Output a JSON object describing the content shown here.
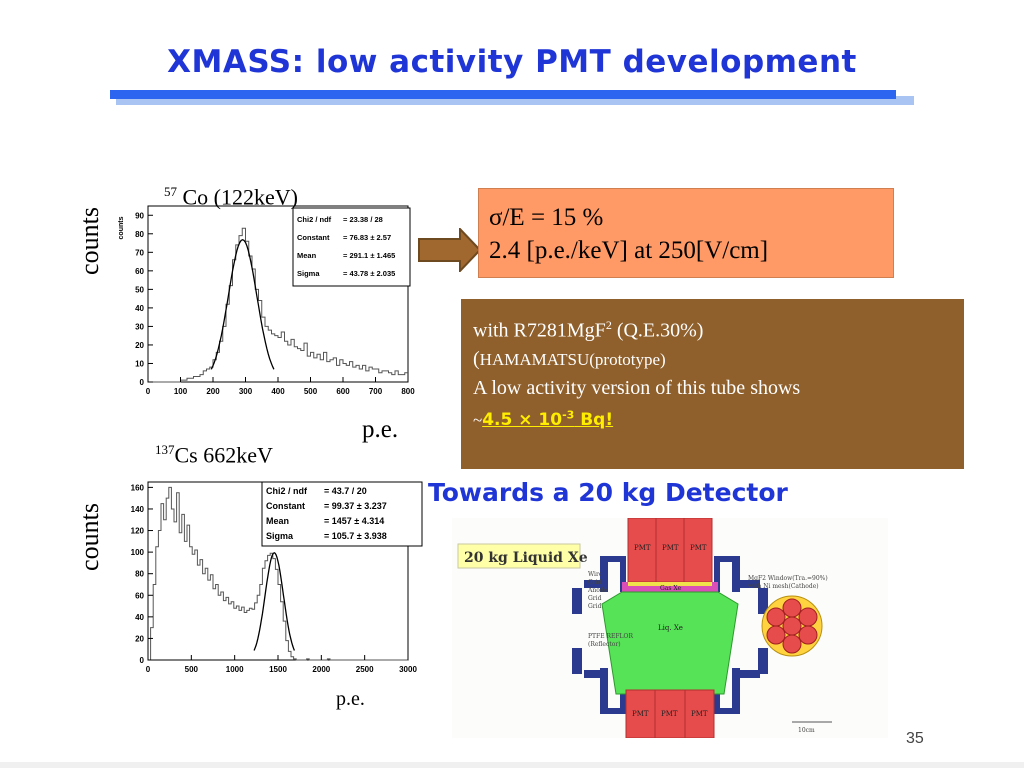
{
  "slide": {
    "title": "XMASS: low activity PMT development",
    "page_number": "35"
  },
  "co57_plot": {
    "isotope_mass": "57",
    "label": " Co (122keV)",
    "y_axis_word": "counts",
    "x_axis_word": "p.e.",
    "inner_ylabel": "counts",
    "stats": [
      {
        "name": "Chi2 / ndf",
        "value": "= 23.38 / 28"
      },
      {
        "name": "Constant",
        "value": "= 76.83 ± 2.57"
      },
      {
        "name": "Mean",
        "value": "= 291.1 ± 1.465"
      },
      {
        "name": "Sigma",
        "value": "= 43.78 ± 2.035"
      }
    ]
  },
  "cs137_plot": {
    "isotope_mass": "137",
    "label": "Cs 662keV",
    "y_axis_word": "counts",
    "x_axis_word": "p.e.",
    "stats": [
      {
        "name": "Chi2 / ndf",
        "value": "=  43.7 / 20"
      },
      {
        "name": "Constant",
        "value": "= 99.37 ± 3.237"
      },
      {
        "name": "Mean",
        "value": "=  1457 ± 4.314"
      },
      {
        "name": "Sigma",
        "value": "= 105.7 ± 3.938"
      }
    ]
  },
  "resolution_box": {
    "line1": "σ/E = 15 %",
    "line2": "2.4 [p.e./keV]  at  250[V/cm]"
  },
  "pmt_box": {
    "with_text": "with  R7281MgF",
    "with_sup": "2",
    "qe_text": "  (Q.E.30%)",
    "maker_paren": "(",
    "maker": "HAMAMATSU(prototype)",
    "line3": "A low activity version of this tube shows",
    "tilde": "~",
    "activity_value": "4.5 ×  10",
    "activity_exp": "-3",
    "activity_unit": "  Bq!"
  },
  "detector": {
    "heading": "Towards a 20 kg Detector",
    "figure_title": "20 kg Liquid Xe",
    "pmt_label": "PMT",
    "gas_label": "Gas Xe",
    "liquid_label": "Liq. Xe",
    "left_labels": [
      "Wire",
      "Grid",
      "Anode",
      "Grid",
      "Grid"
    ],
    "ptfe_label_1": "PTFE REFLOR",
    "ptfe_label_2": "(Reflector)",
    "window_label_1": "MgF2 Window(Tra.=90%)",
    "window_label_2": "with Ni mesh(Cathode)",
    "scale_label": "10cm"
  },
  "chart_data": [
    {
      "type": "bar",
      "title": "57 Co (122keV)",
      "xlabel": "p.e.",
      "ylabel": "counts",
      "xlim": [
        0,
        800
      ],
      "ylim": [
        0,
        95
      ],
      "x_ticks": [
        0,
        100,
        200,
        300,
        400,
        500,
        600,
        700,
        800
      ],
      "y_ticks": [
        0,
        10,
        20,
        30,
        40,
        50,
        60,
        70,
        80,
        90
      ],
      "bin_width": 10,
      "x": [
        0,
        10,
        20,
        30,
        40,
        50,
        60,
        70,
        80,
        90,
        100,
        110,
        120,
        130,
        140,
        150,
        160,
        170,
        180,
        190,
        200,
        210,
        220,
        230,
        240,
        250,
        260,
        270,
        280,
        290,
        300,
        310,
        320,
        330,
        340,
        350,
        360,
        370,
        380,
        390,
        400,
        410,
        420,
        430,
        440,
        450,
        460,
        470,
        480,
        490,
        500,
        510,
        520,
        530,
        540,
        550,
        560,
        570,
        580,
        590,
        600,
        610,
        620,
        630,
        640,
        650,
        660,
        670,
        680,
        690,
        700,
        710,
        720,
        730,
        740,
        750,
        760,
        770,
        780,
        790
      ],
      "values": [
        0,
        0,
        0,
        0,
        0,
        0,
        0,
        0,
        0,
        0,
        1,
        1,
        2,
        2,
        3,
        3,
        4,
        6,
        7,
        8,
        12,
        16,
        22,
        30,
        42,
        52,
        66,
        74,
        79,
        83,
        76,
        68,
        61,
        50,
        44,
        35,
        30,
        28,
        26,
        25,
        24,
        27,
        22,
        20,
        23,
        19,
        18,
        17,
        21,
        14,
        16,
        13,
        15,
        12,
        16,
        11,
        12,
        13,
        9,
        12,
        10,
        9,
        11,
        8,
        9,
        7,
        9,
        6,
        8,
        7,
        7,
        5,
        6,
        6,
        5,
        4,
        6,
        4,
        4,
        5
      ],
      "fit": {
        "model": "gaussian",
        "constant": 76.83,
        "mean": 291.1,
        "sigma": 43.78
      }
    },
    {
      "type": "bar",
      "title": "137Cs 662keV",
      "xlabel": "p.e.",
      "ylabel": "counts",
      "xlim": [
        0,
        3000
      ],
      "ylim": [
        0,
        165
      ],
      "x_ticks": [
        0,
        500,
        1000,
        1500,
        2000,
        2500,
        3000
      ],
      "y_ticks": [
        0,
        20,
        40,
        60,
        80,
        100,
        120,
        140,
        160
      ],
      "bin_width": 30,
      "x": [
        0,
        30,
        60,
        90,
        120,
        150,
        180,
        210,
        240,
        270,
        300,
        330,
        360,
        390,
        420,
        450,
        480,
        510,
        540,
        570,
        600,
        630,
        660,
        690,
        720,
        750,
        780,
        810,
        840,
        870,
        900,
        930,
        960,
        990,
        1020,
        1050,
        1080,
        1110,
        1140,
        1170,
        1200,
        1230,
        1260,
        1290,
        1320,
        1350,
        1380,
        1410,
        1440,
        1470,
        1500,
        1530,
        1560,
        1590,
        1620,
        1650,
        1680,
        1710,
        1740,
        1770,
        1800,
        1830,
        1860,
        1890,
        1920,
        1950,
        1980,
        2010,
        2040,
        2070,
        2100,
        2130,
        2160,
        2190,
        2220,
        2250,
        2280,
        2310,
        2340,
        2370,
        2400,
        2430,
        2460,
        2490,
        2520,
        2550,
        2580,
        2610,
        2640,
        2670,
        2700,
        2730,
        2760,
        2790,
        2820,
        2850,
        2880,
        2910,
        2940,
        2970
      ],
      "values": [
        0,
        30,
        70,
        105,
        120,
        145,
        130,
        150,
        160,
        140,
        128,
        155,
        118,
        135,
        110,
        125,
        105,
        98,
        102,
        88,
        93,
        80,
        85,
        74,
        79,
        66,
        70,
        60,
        63,
        55,
        58,
        52,
        54,
        48,
        50,
        46,
        49,
        44,
        46,
        48,
        47,
        53,
        60,
        70,
        85,
        92,
        97,
        99,
        94,
        84,
        70,
        54,
        36,
        18,
        8,
        3,
        1,
        0,
        0,
        0,
        0,
        1,
        0,
        0,
        0,
        0,
        0,
        0,
        0,
        1,
        0,
        0,
        0,
        0,
        0,
        0,
        0,
        0,
        0,
        0,
        0,
        0,
        0,
        0,
        0,
        0,
        0,
        0,
        0,
        0,
        0,
        0,
        0,
        0,
        0,
        0,
        0,
        0,
        0,
        0
      ],
      "fit": {
        "model": "gaussian",
        "constant": 99.37,
        "mean": 1457,
        "sigma": 105.7
      }
    }
  ],
  "colors": {
    "title_blue": "#1f35d6",
    "bar_blue": "#2c66f0",
    "bar_shadow": "#a9c4f2",
    "resolution_box": "#ff9966",
    "pmt_box": "#8f5f2c",
    "highlight_yellow": "#ffee00",
    "pmt_red": "#e74c4c",
    "liquid_green": "#57e357",
    "gas_magenta": "#d94fb7",
    "frame_navy": "#2b3a8f",
    "label_yellow": "#ffffa8"
  }
}
